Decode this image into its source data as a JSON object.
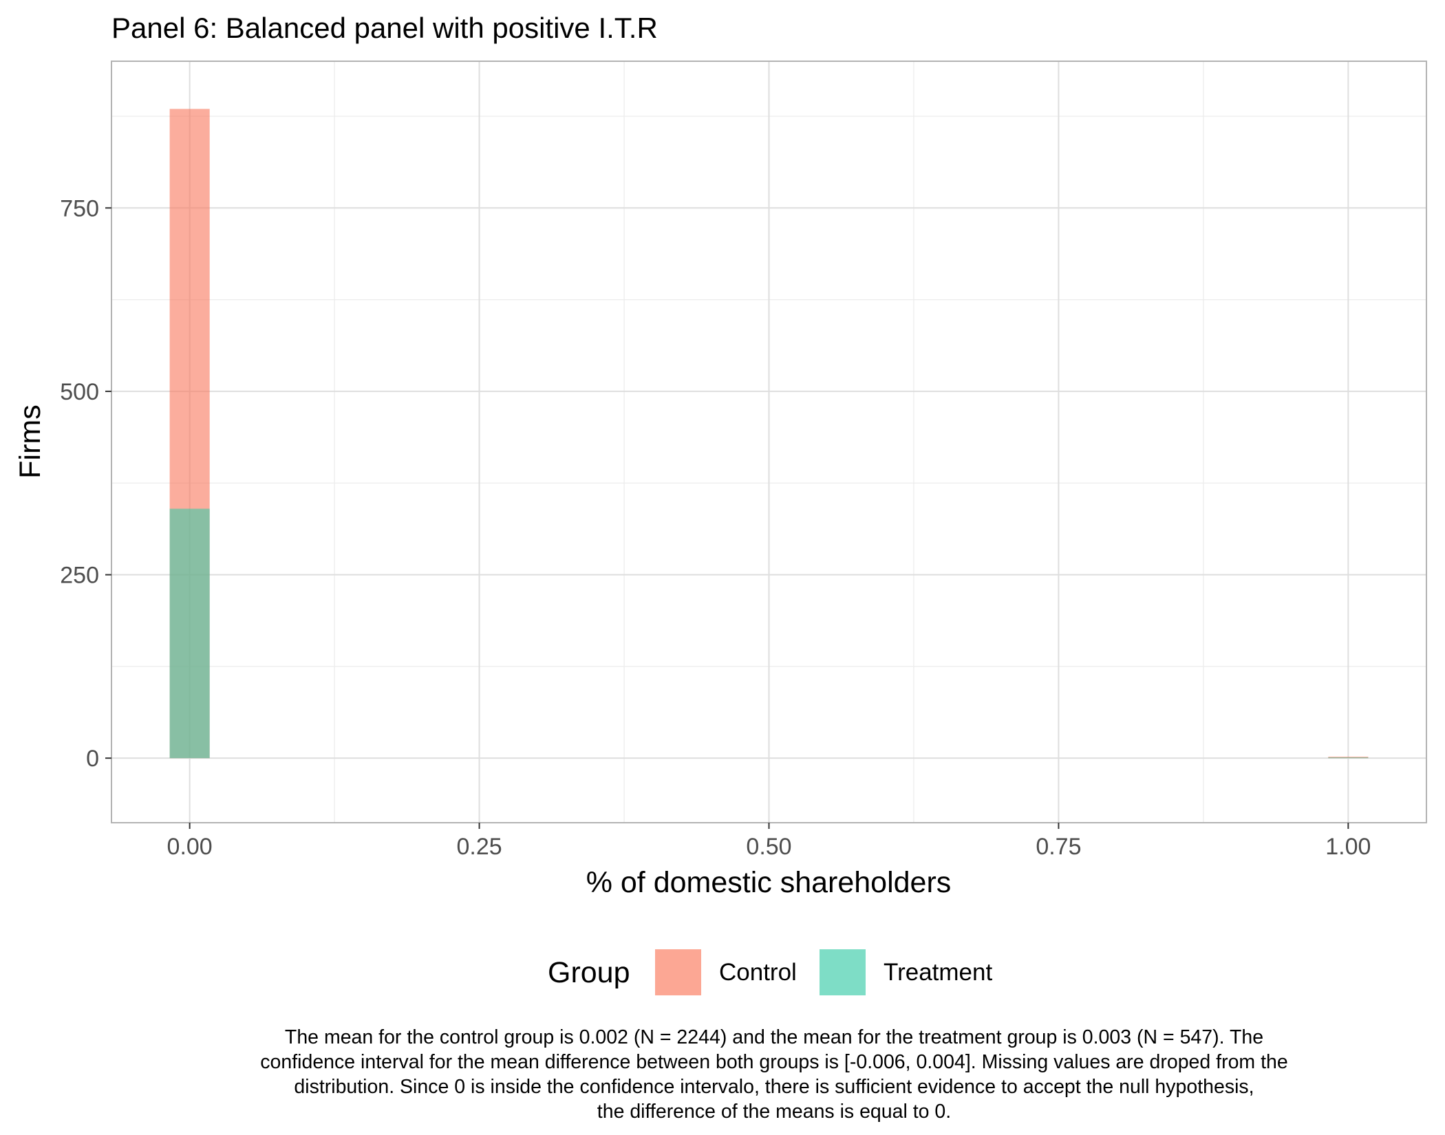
{
  "chart_data": {
    "type": "bar",
    "title": "Panel 6: Balanced panel with positive I.T.R",
    "xlabel": "% of domestic shareholders",
    "ylabel": "Firms",
    "xlim": [
      -0.0675,
      1.0675
    ],
    "ylim": [
      -88,
      950
    ],
    "x_ticks": [
      0.0,
      0.25,
      0.5,
      0.75,
      1.0
    ],
    "x_tick_labels": [
      "0.00",
      "0.25",
      "0.50",
      "0.75",
      "1.00"
    ],
    "y_ticks": [
      0,
      250,
      500,
      750
    ],
    "y_tick_labels": [
      "0",
      "250",
      "500",
      "750"
    ],
    "bin_width": 0.0345,
    "grid": true,
    "series": [
      {
        "name": "Control",
        "color": "#F8765C",
        "bars": [
          {
            "x": 0.0,
            "value": 885
          },
          {
            "x": 1.0,
            "value": 2
          }
        ]
      },
      {
        "name": "Treatment",
        "color": "#3CCCA9",
        "bars": [
          {
            "x": 0.0,
            "value": 340
          },
          {
            "x": 1.0,
            "value": 1
          }
        ]
      }
    ],
    "legend": {
      "title": "Group",
      "position": "bottom",
      "entries": [
        {
          "label": "Control",
          "color": "#FCA794"
        },
        {
          "label": "Treatment",
          "color": "#7EDDC6"
        }
      ]
    },
    "caption_lines": [
      "The mean for the control group is 0.002 (N = 2244) and the mean for the treatment group is 0.003 (N = 547). The",
      "confidence interval for the mean difference between both groups is [-0.006, 0.004]. Missing values are droped from the",
      "distribution. Since 0 is inside the confidence intervalo, there is sufficient evidence to accept the null hypothesis,",
      "the difference of the means is equal to 0."
    ]
  }
}
